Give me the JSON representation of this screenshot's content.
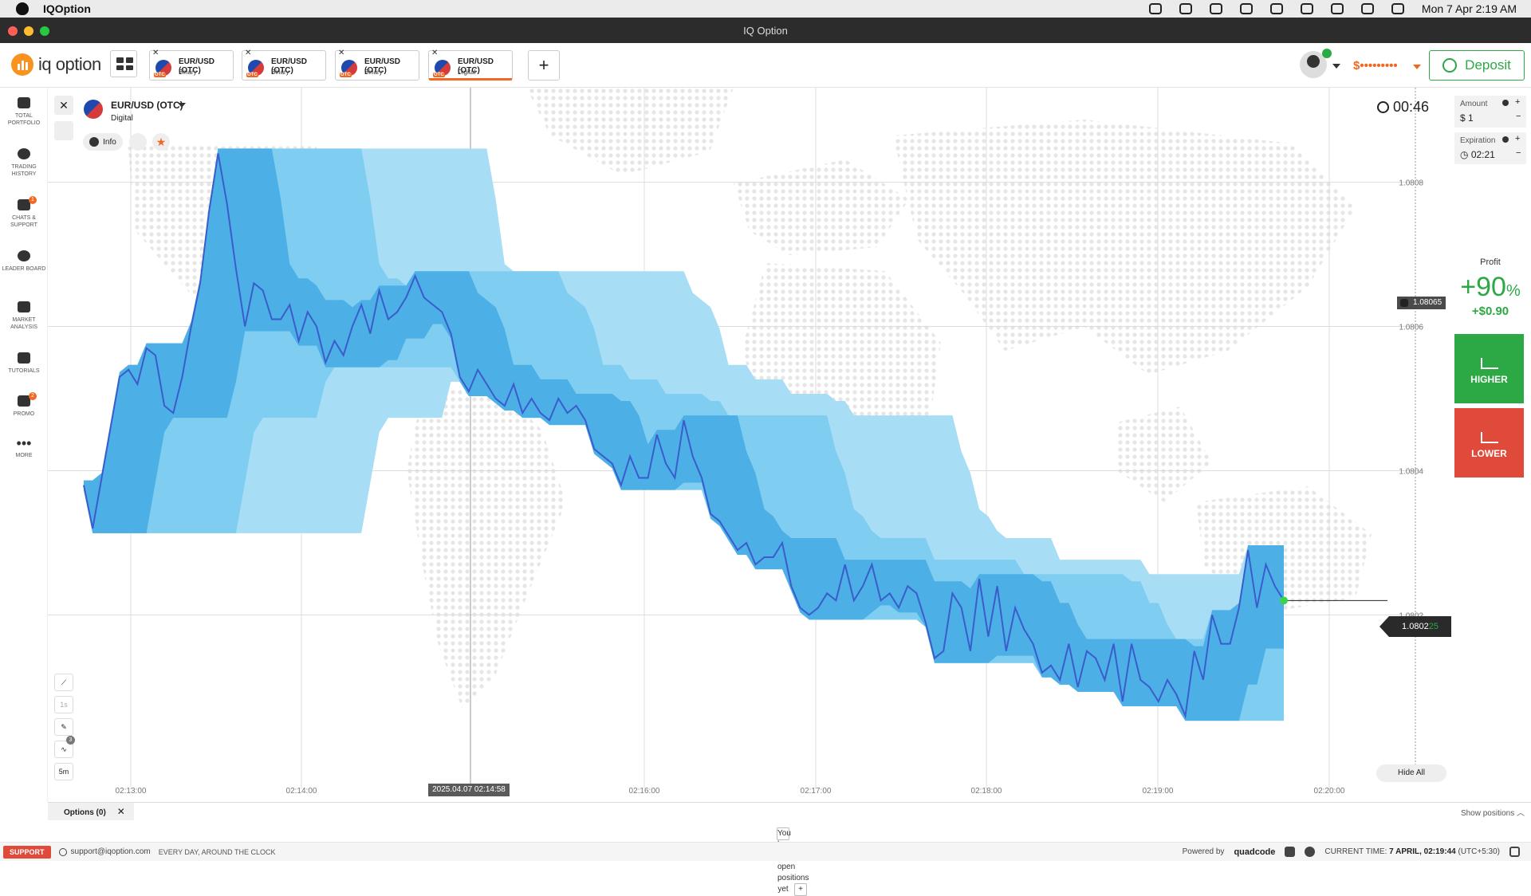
{
  "mac_menu": {
    "app_name": "IQOption",
    "datetime": "Mon 7 Apr  2:19 AM"
  },
  "window": {
    "title": "IQ Option"
  },
  "header": {
    "logo_text": "iq option",
    "tabs": [
      {
        "name": "EUR/USD (OTC)",
        "type": "Binary",
        "active": false
      },
      {
        "name": "EUR/USD (OTC)",
        "type": "Binary",
        "active": false
      },
      {
        "name": "EUR/USD (OTC)",
        "type": "Binary",
        "active": false
      },
      {
        "name": "EUR/USD (OTC)",
        "type": "Digital",
        "active": true
      }
    ],
    "add_tab": "+",
    "balance": "$•••••••••",
    "deposit_label": "Deposit"
  },
  "sidebar": {
    "items": [
      {
        "label": "TOTAL PORTFOLIO",
        "icon": "briefcase-icon"
      },
      {
        "label": "TRADING HISTORY",
        "icon": "clock-icon"
      },
      {
        "label": "CHATS & SUPPORT",
        "icon": "chat-icon",
        "badge": "1"
      },
      {
        "label": "LEADER BOARD",
        "icon": "medal-icon"
      },
      {
        "label": "MARKET ANALYSIS",
        "icon": "bar-chart-icon"
      },
      {
        "label": "TUTORIALS",
        "icon": "graduation-cap-icon"
      },
      {
        "label": "PROMO",
        "icon": "megaphone-icon",
        "badge": "2"
      },
      {
        "label": "MORE",
        "icon": "dots-icon"
      }
    ]
  },
  "asset": {
    "name": "EUR/USD (OTC)",
    "type": "Digital",
    "flag_badge": "OTC",
    "info_label": "Info"
  },
  "timer": "00:46",
  "chart_data": {
    "type": "line",
    "x_ticks": [
      "02:13:00",
      "02:14:00",
      "02:16:00",
      "02:17:00",
      "02:18:00",
      "02:19:00",
      "02:20:00"
    ],
    "y_ticks": [
      "1.0808",
      "1.0806",
      "1.0804",
      "1.0802"
    ],
    "ylim": [
      1.08008,
      1.08092
    ],
    "current_price": {
      "main": "1.0802",
      "last_digits": "25"
    },
    "alert_price": "1.08065",
    "crosshair_time": "2025.04.07 02:14:58",
    "series": [
      {
        "x": [
          0,
          3,
          6,
          9,
          12,
          15,
          18,
          21,
          24,
          27,
          30,
          33,
          36,
          39,
          42,
          45,
          48,
          51,
          54,
          57,
          60,
          63,
          66,
          69,
          72,
          75,
          78,
          81,
          84,
          87,
          90,
          93,
          96,
          99,
          102,
          105,
          108,
          111,
          114,
          117,
          120,
          123,
          126,
          129,
          132,
          135,
          138,
          141,
          144,
          147,
          150,
          153,
          156,
          159,
          162,
          165,
          168,
          171,
          174,
          177,
          180,
          183,
          186,
          189,
          192,
          195,
          198,
          201,
          204,
          207,
          210,
          213,
          216,
          219,
          222,
          225,
          228,
          231,
          234,
          237,
          240,
          243,
          246,
          249,
          252,
          255,
          258,
          261,
          264,
          267,
          270,
          273,
          276,
          279,
          282,
          285,
          288,
          291,
          294,
          297,
          300,
          303,
          306,
          309,
          312,
          315,
          318,
          321,
          324,
          327,
          330,
          333,
          336,
          339,
          342,
          345,
          348,
          351,
          354,
          357,
          360,
          363,
          366,
          369,
          372,
          375,
          378,
          381,
          384,
          387,
          390,
          393,
          396,
          399,
          402
        ],
        "y": [
          1.08038,
          1.08032,
          1.08039,
          1.08046,
          1.08053,
          1.08054,
          1.08052,
          1.08057,
          1.08056,
          1.08049,
          1.08048,
          1.08053,
          1.0806,
          1.08066,
          1.08076,
          1.08084,
          1.08077,
          1.08068,
          1.0806,
          1.08066,
          1.08065,
          1.08061,
          1.08061,
          1.08063,
          1.08058,
          1.08062,
          1.0806,
          1.08055,
          1.08058,
          1.08056,
          1.0806,
          1.08063,
          1.08059,
          1.08065,
          1.08061,
          1.08062,
          1.08064,
          1.08067,
          1.08064,
          1.08063,
          1.08062,
          1.08059,
          1.08053,
          1.08051,
          1.08054,
          1.08052,
          1.0805,
          1.08049,
          1.08052,
          1.08048,
          1.0805,
          1.08048,
          1.08047,
          1.0805,
          1.08048,
          1.08049,
          1.08047,
          1.08043,
          1.08042,
          1.08041,
          1.08038,
          1.08042,
          1.08039,
          1.08039,
          1.08045,
          1.08041,
          1.08039,
          1.08047,
          1.08042,
          1.08039,
          1.08034,
          1.08033,
          1.08031,
          1.08029,
          1.0803,
          1.08027,
          1.08028,
          1.08028,
          1.0803,
          1.08024,
          1.08021,
          1.0802,
          1.08021,
          1.08023,
          1.08022,
          1.08027,
          1.08022,
          1.08024,
          1.08027,
          1.08022,
          1.08023,
          1.08021,
          1.08024,
          1.08023,
          1.08019,
          1.08014,
          1.08015,
          1.08023,
          1.08021,
          1.08015,
          1.08025,
          1.08017,
          1.08024,
          1.08015,
          1.08021,
          1.08018,
          1.08016,
          1.08012,
          1.08013,
          1.08011,
          1.08016,
          1.0801,
          1.08015,
          1.08014,
          1.08011,
          1.08016,
          1.08008,
          1.08016,
          1.08011,
          1.0801,
          1.08008,
          1.08011,
          1.08009,
          1.08006,
          1.08015,
          1.08011,
          1.0802,
          1.08016,
          1.08016,
          1.08021,
          1.08029,
          1.08021,
          1.08027,
          1.08024,
          1.08022
        ]
      }
    ]
  },
  "chart_tools": {
    "candle_interval": "1s",
    "indicators_badge": "3",
    "timeframe": "5m",
    "hide_all": "Hide All"
  },
  "trade_panel": {
    "amount_label": "Amount",
    "amount_value": "$  1",
    "expiration_label": "Expiration",
    "expiration_value": "02:21",
    "profit_label": "Profit",
    "profit_percent": "+90",
    "profit_percent_sign": "%",
    "profit_amount": "+$0.90",
    "higher_label": "HIGHER",
    "lower_label": "LOWER"
  },
  "positions": {
    "tab_label": "Options (0)",
    "show_positions": "Show positions",
    "empty_text": "You have no open positions yet"
  },
  "footer": {
    "support_label": "SUPPORT",
    "email": "support@iqoption.com",
    "availability": "EVERY DAY, AROUND THE CLOCK",
    "powered_by": "Powered by",
    "brand": "quadcode",
    "current_time_label": "CURRENT TIME:",
    "current_time": "7 APRIL, 02:19:44",
    "timezone": "(UTC+5:30)"
  },
  "colors": {
    "accent": "#f26822",
    "higher": "#2ca844",
    "lower": "#e04a3a",
    "band_light": "#a8def5",
    "band_mid": "#7fcdf0",
    "band_dark": "#4cb0e6",
    "line": "#3a5ccc"
  }
}
